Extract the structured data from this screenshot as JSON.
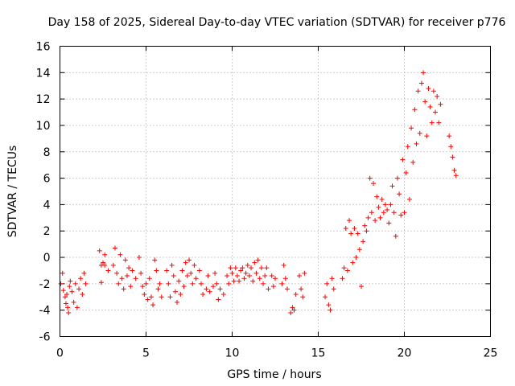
{
  "chart_data": {
    "type": "scatter",
    "title": "Day 158 of 2025, Sidereal Day-to-day VTEC variation (SDTVAR) for receiver p776",
    "xlabel": "GPS time / hours",
    "ylabel": "SDTVAR / TECUs",
    "xlim": [
      0,
      25
    ],
    "ylim": [
      -6,
      16
    ],
    "xticks": [
      "0",
      "5",
      "10",
      "15",
      "20",
      "25"
    ],
    "yticks": [
      "-6",
      "-4",
      "-2",
      "0",
      "2",
      "4",
      "6",
      "8",
      "10",
      "12",
      "14",
      "16"
    ],
    "grid": true,
    "marker": "+",
    "color": "#ff0000",
    "series": [
      {
        "name": "SDTVAR",
        "points": [
          [
            0.05,
            -2.0
          ],
          [
            0.15,
            -1.2
          ],
          [
            0.2,
            -2.5
          ],
          [
            0.3,
            -3.0
          ],
          [
            0.35,
            -3.5
          ],
          [
            0.4,
            -2.8
          ],
          [
            0.45,
            -3.8
          ],
          [
            0.5,
            -4.2
          ],
          [
            0.55,
            -2.2
          ],
          [
            0.6,
            -1.8
          ],
          [
            0.7,
            -2.6
          ],
          [
            0.8,
            -3.4
          ],
          [
            0.9,
            -2.0
          ],
          [
            1.0,
            -3.8
          ],
          [
            1.1,
            -2.4
          ],
          [
            1.2,
            -1.6
          ],
          [
            1.3,
            -2.8
          ],
          [
            1.4,
            -1.2
          ],
          [
            1.5,
            -2.0
          ],
          [
            2.3,
            0.5
          ],
          [
            2.4,
            -0.6
          ],
          [
            2.4,
            -1.9
          ],
          [
            2.5,
            -0.4
          ],
          [
            2.6,
            -0.6
          ],
          [
            2.6,
            0.2
          ],
          [
            2.8,
            -1.0
          ],
          [
            3.1,
            -0.6
          ],
          [
            3.2,
            0.7
          ],
          [
            3.3,
            -1.2
          ],
          [
            3.4,
            -2.0
          ],
          [
            3.5,
            0.2
          ],
          [
            3.6,
            -1.6
          ],
          [
            3.7,
            -2.4
          ],
          [
            3.8,
            -0.2
          ],
          [
            3.9,
            -1.4
          ],
          [
            4.0,
            -0.8
          ],
          [
            4.1,
            -2.2
          ],
          [
            4.2,
            -1.0
          ],
          [
            4.4,
            -1.6
          ],
          [
            4.6,
            0.0
          ],
          [
            4.7,
            -1.2
          ],
          [
            4.8,
            -2.2
          ],
          [
            4.9,
            -2.8
          ],
          [
            5.0,
            -2.0
          ],
          [
            5.1,
            -3.2
          ],
          [
            5.2,
            -1.6
          ],
          [
            5.3,
            -3.0
          ],
          [
            5.4,
            -3.6
          ],
          [
            5.5,
            -0.2
          ],
          [
            5.6,
            -1.0
          ],
          [
            5.7,
            -2.4
          ],
          [
            5.8,
            -2.0
          ],
          [
            5.9,
            -3.0
          ],
          [
            6.2,
            -1.0
          ],
          [
            6.3,
            -2.0
          ],
          [
            6.4,
            -3.0
          ],
          [
            6.5,
            -0.6
          ],
          [
            6.6,
            -1.4
          ],
          [
            6.7,
            -2.6
          ],
          [
            6.8,
            -3.4
          ],
          [
            6.9,
            -1.8
          ],
          [
            7.0,
            -2.8
          ],
          [
            7.1,
            -1.0
          ],
          [
            7.2,
            -2.2
          ],
          [
            7.3,
            -0.4
          ],
          [
            7.4,
            -1.4
          ],
          [
            7.5,
            -0.2
          ],
          [
            7.6,
            -1.2
          ],
          [
            7.7,
            -2.0
          ],
          [
            7.8,
            -0.6
          ],
          [
            7.9,
            -1.6
          ],
          [
            8.1,
            -1.0
          ],
          [
            8.2,
            -2.0
          ],
          [
            8.3,
            -2.8
          ],
          [
            8.5,
            -2.4
          ],
          [
            8.6,
            -1.4
          ],
          [
            8.7,
            -2.6
          ],
          [
            8.9,
            -2.2
          ],
          [
            9.0,
            -1.2
          ],
          [
            9.1,
            -2.0
          ],
          [
            9.2,
            -3.2
          ],
          [
            9.3,
            -2.4
          ],
          [
            9.5,
            -2.8
          ],
          [
            9.7,
            -1.4
          ],
          [
            9.8,
            -2.0
          ],
          [
            9.9,
            -0.8
          ],
          [
            10.0,
            -1.2
          ],
          [
            10.1,
            -1.8
          ],
          [
            10.2,
            -0.8
          ],
          [
            10.3,
            -1.4
          ],
          [
            10.4,
            -1.8
          ],
          [
            10.5,
            -1.0
          ],
          [
            10.6,
            -0.8
          ],
          [
            10.7,
            -1.6
          ],
          [
            10.8,
            -1.2
          ],
          [
            10.9,
            -0.6
          ],
          [
            11.0,
            -1.4
          ],
          [
            11.1,
            -0.8
          ],
          [
            11.2,
            -1.8
          ],
          [
            11.3,
            -0.4
          ],
          [
            11.4,
            -1.2
          ],
          [
            11.5,
            -0.2
          ],
          [
            11.6,
            -1.6
          ],
          [
            11.7,
            -0.8
          ],
          [
            11.8,
            -2.0
          ],
          [
            11.9,
            -1.4
          ],
          [
            12.0,
            -0.8
          ],
          [
            12.1,
            -2.4
          ],
          [
            12.3,
            -1.4
          ],
          [
            12.4,
            -2.2
          ],
          [
            12.5,
            -1.6
          ],
          [
            12.9,
            -2.0
          ],
          [
            13.0,
            -0.6
          ],
          [
            13.1,
            -1.6
          ],
          [
            13.2,
            -2.4
          ],
          [
            13.4,
            -4.2
          ],
          [
            13.5,
            -3.8
          ],
          [
            13.6,
            -4.0
          ],
          [
            13.7,
            -2.8
          ],
          [
            13.9,
            -1.4
          ],
          [
            14.0,
            -2.4
          ],
          [
            14.1,
            -3.0
          ],
          [
            14.2,
            -1.2
          ],
          [
            15.4,
            -3.0
          ],
          [
            15.5,
            -2.0
          ],
          [
            15.6,
            -3.6
          ],
          [
            15.7,
            -4.0
          ],
          [
            15.8,
            -1.6
          ],
          [
            15.9,
            -2.4
          ],
          [
            16.4,
            -1.6
          ],
          [
            16.5,
            -0.8
          ],
          [
            16.6,
            2.2
          ],
          [
            16.7,
            -1.0
          ],
          [
            16.8,
            2.8
          ],
          [
            16.9,
            1.8
          ],
          [
            17.0,
            -0.4
          ],
          [
            17.1,
            2.2
          ],
          [
            17.2,
            0.0
          ],
          [
            17.3,
            1.8
          ],
          [
            17.4,
            0.6
          ],
          [
            17.5,
            -2.2
          ],
          [
            17.6,
            1.2
          ],
          [
            17.7,
            2.4
          ],
          [
            17.8,
            2.0
          ],
          [
            17.9,
            3.0
          ],
          [
            18.0,
            6.0
          ],
          [
            18.1,
            3.4
          ],
          [
            18.2,
            5.6
          ],
          [
            18.3,
            2.8
          ],
          [
            18.4,
            4.6
          ],
          [
            18.5,
            3.8
          ],
          [
            18.6,
            3.0
          ],
          [
            18.7,
            4.4
          ],
          [
            18.8,
            3.4
          ],
          [
            18.9,
            4.0
          ],
          [
            19.0,
            3.6
          ],
          [
            19.1,
            2.6
          ],
          [
            19.2,
            4.0
          ],
          [
            19.3,
            5.4
          ],
          [
            19.4,
            3.4
          ],
          [
            19.5,
            1.6
          ],
          [
            19.6,
            6.0
          ],
          [
            19.7,
            4.8
          ],
          [
            19.8,
            3.2
          ],
          [
            19.9,
            7.4
          ],
          [
            20.0,
            3.4
          ],
          [
            20.1,
            6.4
          ],
          [
            20.2,
            8.4
          ],
          [
            20.3,
            4.4
          ],
          [
            20.4,
            9.8
          ],
          [
            20.5,
            7.2
          ],
          [
            20.6,
            11.2
          ],
          [
            20.7,
            8.6
          ],
          [
            20.8,
            12.6
          ],
          [
            20.9,
            9.4
          ],
          [
            21.0,
            13.2
          ],
          [
            21.1,
            14.0
          ],
          [
            21.2,
            11.8
          ],
          [
            21.3,
            9.2
          ],
          [
            21.4,
            12.8
          ],
          [
            21.5,
            11.4
          ],
          [
            21.6,
            10.2
          ],
          [
            21.7,
            12.6
          ],
          [
            21.8,
            11.0
          ],
          [
            21.9,
            12.2
          ],
          [
            22.0,
            10.2
          ],
          [
            22.1,
            11.6
          ],
          [
            22.6,
            9.2
          ],
          [
            22.7,
            8.4
          ],
          [
            22.8,
            7.6
          ],
          [
            22.9,
            6.6
          ],
          [
            23.0,
            6.2
          ]
        ]
      }
    ]
  }
}
